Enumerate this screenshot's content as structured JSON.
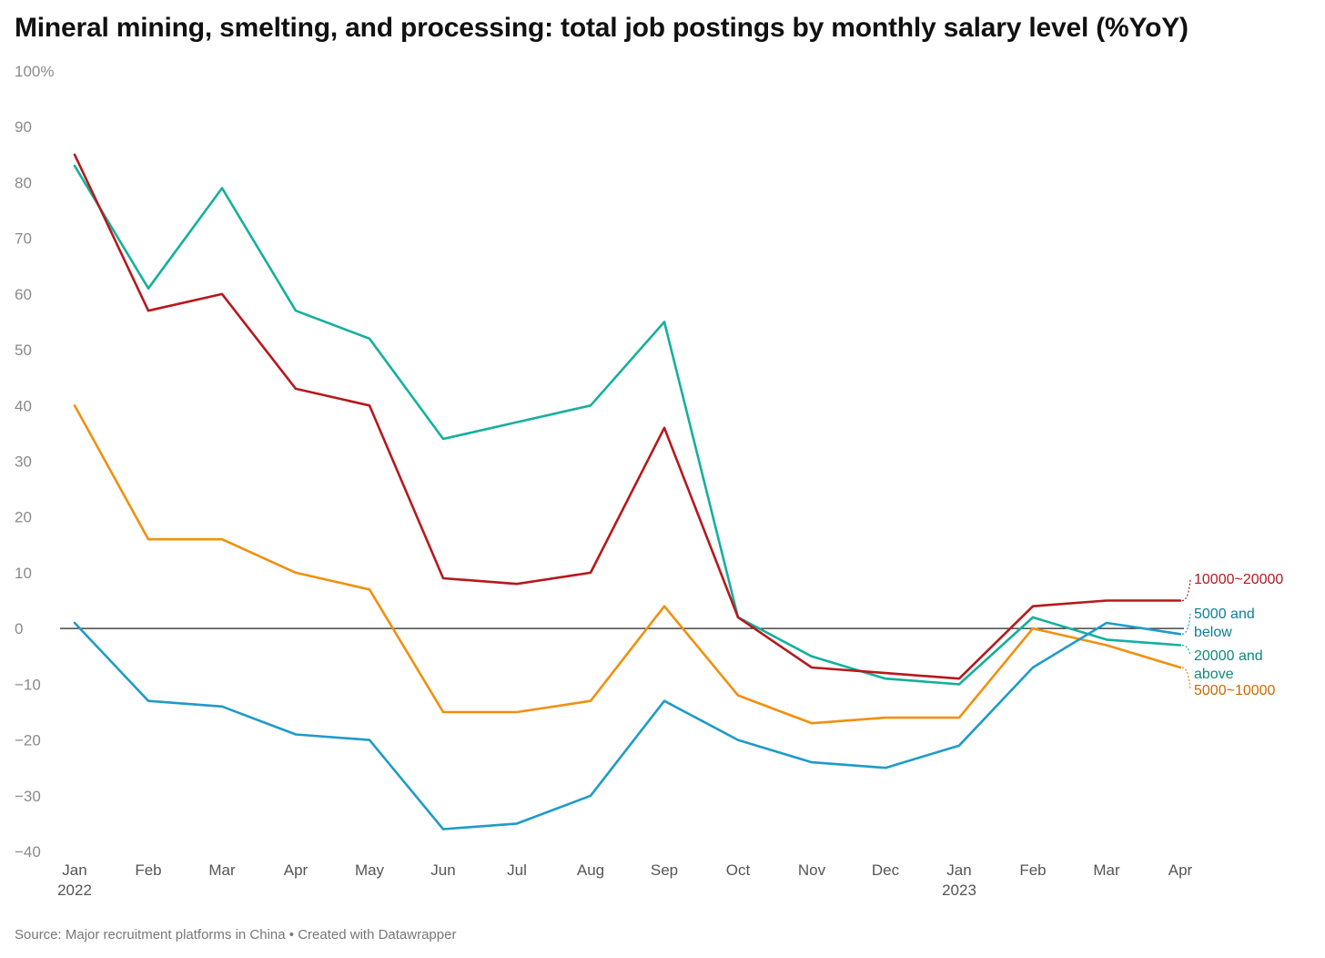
{
  "page": {
    "title": "Mineral mining, smelting, and processing: total job postings by monthly salary level (%YoY)",
    "footer": "Source: Major recruitment platforms in China • Created with Datawrapper"
  },
  "chart_data": {
    "type": "line",
    "x": [
      "Jan",
      "Feb",
      "Mar",
      "Apr",
      "May",
      "Jun",
      "Jul",
      "Aug",
      "Sep",
      "Oct",
      "Nov",
      "Dec",
      "Jan",
      "Feb",
      "Mar",
      "Apr"
    ],
    "x_sublabels": [
      "2022",
      "",
      "",
      "",
      "",
      "",
      "",
      "",
      "",
      "",
      "",
      "",
      "2023",
      "",
      "",
      ""
    ],
    "y_ticks": [
      {
        "value": 100,
        "label": "100%"
      },
      {
        "value": 90,
        "label": "90"
      },
      {
        "value": 80,
        "label": "80"
      },
      {
        "value": 70,
        "label": "70"
      },
      {
        "value": 60,
        "label": "60"
      },
      {
        "value": 50,
        "label": "50"
      },
      {
        "value": 40,
        "label": "40"
      },
      {
        "value": 30,
        "label": "30"
      },
      {
        "value": 20,
        "label": "20"
      },
      {
        "value": 10,
        "label": "10"
      },
      {
        "value": 0,
        "label": "0"
      },
      {
        "value": -10,
        "label": "−10"
      },
      {
        "value": -20,
        "label": "−20"
      },
      {
        "value": -30,
        "label": "−30"
      },
      {
        "value": -40,
        "label": "−40"
      }
    ],
    "ylim": [
      -40,
      100
    ],
    "grid": false,
    "zero_line": true,
    "legend": "direct labels at right end of lines",
    "series": [
      {
        "name": "20000 and above",
        "label_lines": [
          "20000 and",
          "above"
        ],
        "color": "#14b09c",
        "label_color": "#0d8a78",
        "values": [
          83,
          61,
          79,
          57,
          52,
          34,
          37,
          40,
          55,
          2,
          -5,
          -9,
          -10,
          2,
          -2,
          -3
        ]
      },
      {
        "name": "10000~20000",
        "label_lines": [
          "10000~20000"
        ],
        "color": "#b5191d",
        "label_color": "#b5191d",
        "values": [
          85,
          57,
          60,
          43,
          40,
          9,
          8,
          10,
          36,
          2,
          -7,
          -8,
          -9,
          4,
          5,
          5
        ]
      },
      {
        "name": "5000~10000",
        "label_lines": [
          "5000~10000"
        ],
        "color": "#f0900f",
        "label_color": "#c96a00",
        "values": [
          40,
          16,
          16,
          10,
          7,
          -15,
          -15,
          -13,
          4,
          -12,
          -17,
          -16,
          -16,
          0,
          -3,
          -7
        ]
      },
      {
        "name": "5000 and below",
        "label_lines": [
          "5000 and",
          "below"
        ],
        "color": "#1e9bc9",
        "label_color": "#0d7e9c",
        "values": [
          1,
          -13,
          -14,
          -19,
          -20,
          -36,
          -35,
          -30,
          -13,
          -20,
          -24,
          -25,
          -21,
          -7,
          1,
          -1
        ]
      }
    ]
  }
}
